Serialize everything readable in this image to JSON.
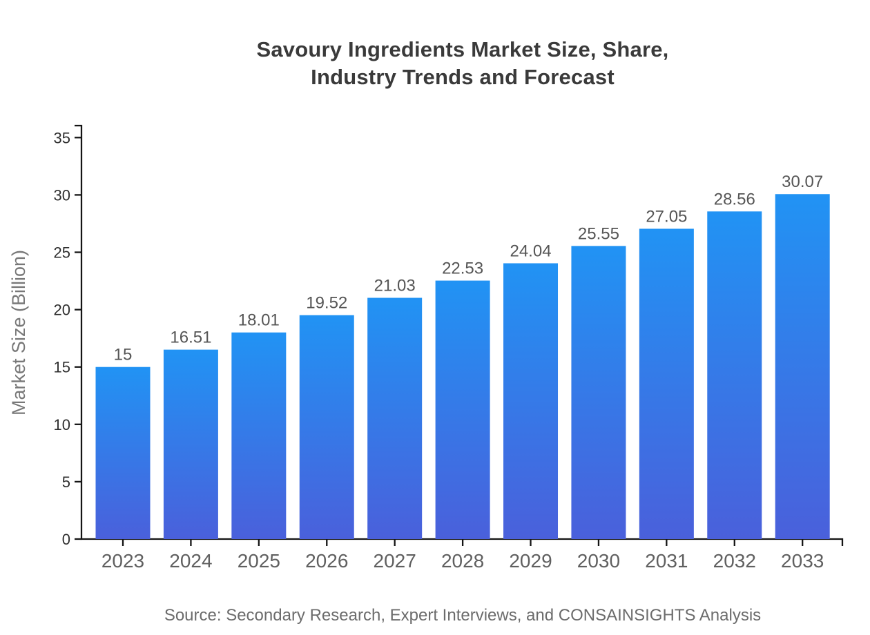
{
  "title": {
    "line1": "Savoury Ingredients Market Size, Share,",
    "line2": "Industry Trends and Forecast"
  },
  "source_note": "Source: Secondary Research, Expert Interviews, and CONSAINSIGHTS Analysis",
  "chart_data": {
    "type": "bar",
    "title": "Savoury Ingredients Market Size, Share, Industry Trends and Forecast",
    "categories": [
      "2023",
      "2024",
      "2025",
      "2026",
      "2027",
      "2028",
      "2029",
      "2030",
      "2031",
      "2032",
      "2033"
    ],
    "values": [
      15,
      16.51,
      18.01,
      19.52,
      21.03,
      22.53,
      24.04,
      25.55,
      27.05,
      28.56,
      30.07
    ],
    "value_labels": [
      "15",
      "16.51",
      "18.01",
      "19.52",
      "21.03",
      "22.53",
      "24.04",
      "25.55",
      "27.05",
      "28.56",
      "30.07"
    ],
    "xlabel": "",
    "ylabel": "Market Size (Billion)",
    "ylim": [
      0,
      35
    ],
    "yticks": [
      0,
      5,
      10,
      15,
      20,
      25,
      30,
      35
    ],
    "grid": false,
    "legend": false,
    "bar_gradient_top": "#2193F4",
    "bar_gradient_bottom": "#4A60DB"
  },
  "colors": {
    "background": "#FFFFFF",
    "title": "#3A3A3A",
    "axis": "#141414",
    "y_tick_label": "#2E2E2E",
    "x_tick_label": "#606060",
    "value_label": "#555555",
    "axis_title": "#787878",
    "source": "#6C6C6C"
  }
}
